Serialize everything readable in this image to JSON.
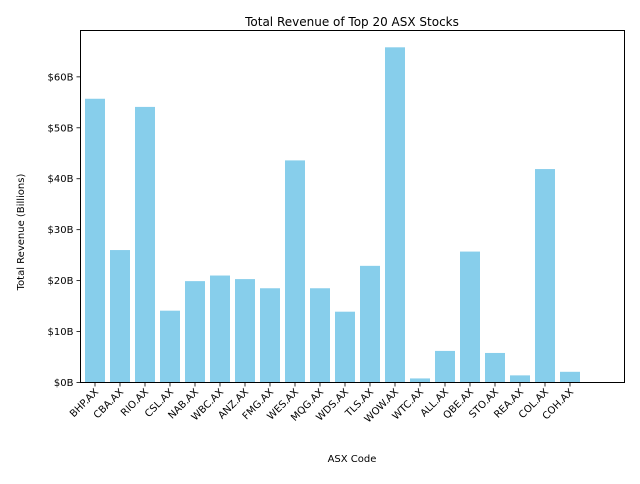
{
  "chart_data": {
    "type": "bar",
    "title": "Total Revenue of Top 20 ASX Stocks",
    "xlabel": "ASX Code",
    "ylabel": "Total Revenue (Billions)",
    "categories": [
      "BHP.AX",
      "CBA.AX",
      "RIO.AX",
      "CSL.AX",
      "NAB.AX",
      "WBC.AX",
      "ANZ.AX",
      "FMG.AX",
      "WES.AX",
      "MQG.AX",
      "WDS.AX",
      "TLS.AX",
      "WOW.AX",
      "WTC.AX",
      "ALL.AX",
      "QBE.AX",
      "STO.AX",
      "REA.AX",
      "COL.AX",
      "COH.AX"
    ],
    "values": [
      55.7,
      26.0,
      54.1,
      14.1,
      19.9,
      21.0,
      20.3,
      18.5,
      43.6,
      18.5,
      13.9,
      22.9,
      65.8,
      0.8,
      6.2,
      25.7,
      5.8,
      1.4,
      41.9,
      2.1
    ],
    "ylim": [
      0,
      69.1
    ],
    "yticks": [
      0,
      10,
      20,
      30,
      40,
      50,
      60
    ],
    "ytick_labels": [
      "$0B",
      "$10B",
      "$20B",
      "$30B",
      "$40B",
      "$50B",
      "$60B"
    ],
    "bar_color": "#87CEEB",
    "grid": false,
    "legend": "none"
  }
}
